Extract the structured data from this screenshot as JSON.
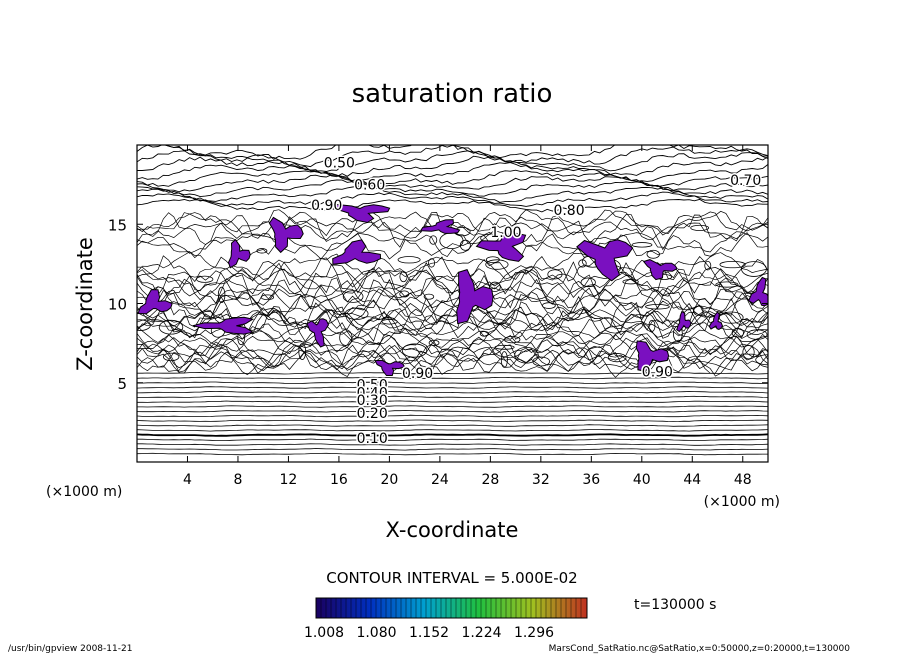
{
  "chart_data": {
    "type": "heatmap",
    "subtype": "contour",
    "title": "saturation ratio",
    "xlabel": "X-coordinate",
    "ylabel": "Z-coordinate",
    "x_unit_note": "(×1000 m)",
    "y_unit_note": "(×1000 m)",
    "xlim": [
      0,
      50
    ],
    "ylim": [
      0,
      20
    ],
    "x_ticks": [
      4,
      8,
      12,
      16,
      20,
      24,
      28,
      32,
      36,
      40,
      44,
      48
    ],
    "y_ticks": [
      5,
      10,
      15
    ],
    "contour_interval_text": "CONTOUR INTERVAL = 5.000E-02",
    "time_text": "t=130000 s",
    "colorbar": {
      "tick_labels": [
        "1.008",
        "1.080",
        "1.152",
        "1.224",
        "1.296"
      ],
      "colors": [
        "#1a0060",
        "#0030c0",
        "#00a0d0",
        "#20c040",
        "#a0c020",
        "#c03020"
      ]
    },
    "fill_color": "#7a10c0",
    "contour_labels": [
      {
        "text": "0.50",
        "x": 14.8,
        "z": 18.9
      },
      {
        "text": "0.60",
        "x": 17.2,
        "z": 17.5
      },
      {
        "text": "0.90",
        "x": 13.8,
        "z": 16.2
      },
      {
        "text": "0.80",
        "x": 33.0,
        "z": 15.9
      },
      {
        "text": "0.70",
        "x": 47.0,
        "z": 17.8
      },
      {
        "text": "1.00",
        "x": 28.0,
        "z": 14.5
      },
      {
        "text": "0.90",
        "x": 21.0,
        "z": 5.6
      },
      {
        "text": "0.90",
        "x": 40.0,
        "z": 5.7
      },
      {
        "text": "0.50",
        "x": 17.4,
        "z": 4.9
      },
      {
        "text": "0.40",
        "x": 17.4,
        "z": 4.4
      },
      {
        "text": "0.30",
        "x": 17.4,
        "z": 3.9
      },
      {
        "text": "0.20",
        "x": 17.4,
        "z": 3.1
      },
      {
        "text": "0.10",
        "x": 17.4,
        "z": 1.5
      }
    ],
    "supersaturated_regions": [
      {
        "x": 17.8,
        "z": 15.8,
        "rx": 2.3,
        "rz": 0.6
      },
      {
        "x": 11.7,
        "z": 14.4,
        "rx": 1.5,
        "rz": 1.0
      },
      {
        "x": 8.0,
        "z": 13.1,
        "rx": 1.0,
        "rz": 0.8
      },
      {
        "x": 17.4,
        "z": 13.1,
        "rx": 2.0,
        "rz": 0.8
      },
      {
        "x": 24.2,
        "z": 14.8,
        "rx": 1.5,
        "rz": 0.5
      },
      {
        "x": 29.2,
        "z": 13.6,
        "rx": 1.9,
        "rz": 1.0
      },
      {
        "x": 37.2,
        "z": 13.0,
        "rx": 2.1,
        "rz": 1.4
      },
      {
        "x": 41.4,
        "z": 12.2,
        "rx": 1.4,
        "rz": 0.6
      },
      {
        "x": 26.5,
        "z": 10.4,
        "rx": 1.8,
        "rz": 1.6
      },
      {
        "x": 1.4,
        "z": 10.0,
        "rx": 1.4,
        "rz": 0.8
      },
      {
        "x": 49.4,
        "z": 10.6,
        "rx": 0.8,
        "rz": 1.0
      },
      {
        "x": 7.3,
        "z": 8.6,
        "rx": 2.3,
        "rz": 0.6
      },
      {
        "x": 14.4,
        "z": 8.3,
        "rx": 0.8,
        "rz": 1.0
      },
      {
        "x": 20.0,
        "z": 6.0,
        "rx": 1.2,
        "rz": 0.5
      },
      {
        "x": 40.6,
        "z": 6.7,
        "rx": 1.6,
        "rz": 0.9
      },
      {
        "x": 43.3,
        "z": 8.8,
        "rx": 0.6,
        "rz": 0.6
      },
      {
        "x": 45.9,
        "z": 8.8,
        "rx": 0.5,
        "rz": 0.6
      }
    ]
  },
  "footer": {
    "left": "/usr/bin/gpview   2008-11-21",
    "right": "MarsCond_SatRatio.nc@SatRatio,x=0:50000,z=0:20000,t=130000"
  }
}
